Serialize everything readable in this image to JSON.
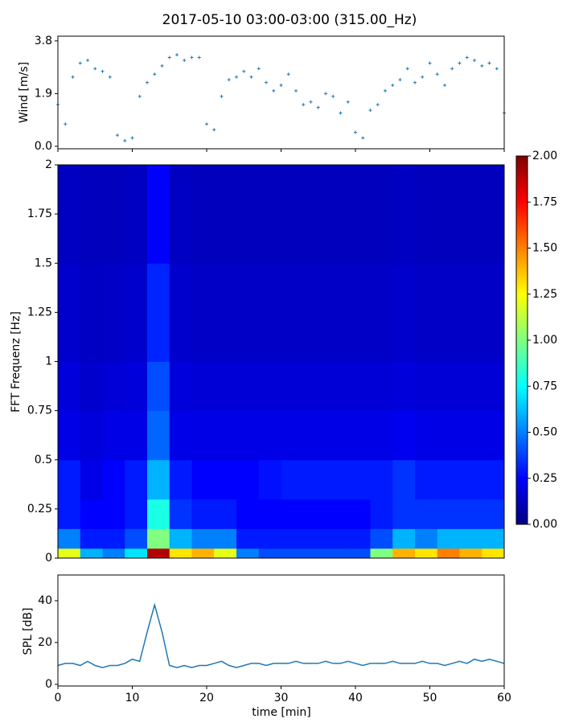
{
  "chart_data": [
    {
      "type": "scatter",
      "title": "2017-05-10 03:00-03:00 (315.00_Hz)",
      "ylabel": "Wind [m/s]",
      "color": "#1f77b4",
      "x": [
        0,
        1,
        2,
        3,
        4,
        5,
        6,
        7,
        8,
        9,
        10,
        11,
        12,
        13,
        14,
        15,
        16,
        17,
        18,
        19,
        20,
        21,
        22,
        23,
        24,
        25,
        26,
        27,
        28,
        29,
        30,
        31,
        32,
        33,
        34,
        35,
        36,
        37,
        38,
        39,
        40,
        41,
        42,
        43,
        44,
        45,
        46,
        47,
        48,
        49,
        50,
        51,
        52,
        53,
        54,
        55,
        56,
        57,
        58,
        59,
        60
      ],
      "values": [
        1.5,
        0.8,
        2.5,
        3.0,
        3.1,
        2.8,
        2.7,
        2.5,
        0.4,
        0.2,
        0.3,
        1.8,
        2.3,
        2.6,
        2.9,
        3.2,
        3.3,
        3.1,
        3.2,
        3.2,
        0.8,
        0.6,
        1.8,
        2.4,
        2.5,
        2.7,
        2.5,
        2.8,
        2.3,
        2.0,
        2.2,
        2.6,
        2.0,
        1.5,
        1.6,
        1.4,
        1.9,
        1.8,
        1.2,
        1.6,
        0.5,
        0.3,
        1.3,
        1.5,
        2.0,
        2.2,
        2.4,
        2.8,
        2.3,
        2.5,
        3.0,
        2.6,
        2.2,
        2.8,
        3.0,
        3.2,
        3.1,
        2.9,
        3.0,
        2.8,
        1.2
      ],
      "xlim": [
        0,
        60
      ],
      "ylim": [
        -0.09,
        3.97
      ],
      "yticks": [
        {
          "value": 0,
          "label": "0.0"
        },
        {
          "value": 1.9,
          "label": "1.9"
        },
        {
          "value": 3.8,
          "label": "3.8"
        }
      ]
    },
    {
      "type": "heatmap",
      "ylabel": "FFT Frequenz [Hz]",
      "colormap": "jet",
      "x_edges": [
        0,
        3,
        6,
        9,
        12,
        15,
        18,
        21,
        24,
        27,
        30,
        33,
        36,
        39,
        42,
        45,
        48,
        51,
        54,
        57,
        60
      ],
      "y_edges": [
        0,
        0.05,
        0.15,
        0.3,
        0.5,
        0.75,
        1,
        1.5,
        2
      ],
      "z": [
        [
          1.2,
          0.6,
          0.5,
          0.7,
          1.9,
          1.3,
          1.4,
          1.2,
          0.5,
          0.4,
          0.4,
          0.4,
          0.4,
          0.4,
          1.0,
          1.4,
          1.3,
          1.5,
          1.4,
          1.3
        ],
        [
          0.5,
          0.3,
          0.3,
          0.4,
          1.0,
          0.6,
          0.5,
          0.5,
          0.3,
          0.3,
          0.3,
          0.3,
          0.3,
          0.3,
          0.4,
          0.6,
          0.5,
          0.6,
          0.6,
          0.6
        ],
        [
          0.3,
          0.25,
          0.25,
          0.3,
          0.8,
          0.35,
          0.3,
          0.3,
          0.25,
          0.25,
          0.25,
          0.25,
          0.25,
          0.25,
          0.3,
          0.35,
          0.35,
          0.35,
          0.35,
          0.35
        ],
        [
          0.3,
          0.2,
          0.25,
          0.3,
          0.6,
          0.3,
          0.25,
          0.25,
          0.25,
          0.28,
          0.3,
          0.3,
          0.3,
          0.3,
          0.3,
          0.35,
          0.3,
          0.3,
          0.3,
          0.3
        ],
        [
          0.2,
          0.18,
          0.2,
          0.2,
          0.45,
          0.2,
          0.2,
          0.2,
          0.2,
          0.2,
          0.2,
          0.2,
          0.2,
          0.2,
          0.2,
          0.22,
          0.2,
          0.2,
          0.2,
          0.2
        ],
        [
          0.18,
          0.15,
          0.17,
          0.18,
          0.4,
          0.18,
          0.17,
          0.17,
          0.17,
          0.17,
          0.17,
          0.17,
          0.17,
          0.17,
          0.17,
          0.18,
          0.17,
          0.17,
          0.17,
          0.17
        ],
        [
          0.15,
          0.13,
          0.14,
          0.15,
          0.32,
          0.15,
          0.14,
          0.14,
          0.14,
          0.14,
          0.14,
          0.14,
          0.14,
          0.14,
          0.14,
          0.15,
          0.14,
          0.14,
          0.14,
          0.14
        ],
        [
          0.13,
          0.12,
          0.12,
          0.13,
          0.25,
          0.13,
          0.12,
          0.12,
          0.12,
          0.12,
          0.12,
          0.12,
          0.12,
          0.12,
          0.12,
          0.13,
          0.12,
          0.12,
          0.12,
          0.12
        ]
      ],
      "xlim": [
        0,
        60
      ],
      "ylim": [
        0,
        2
      ],
      "yticks": [
        0,
        0.25,
        0.5,
        0.75,
        1,
        1.25,
        1.5,
        1.75,
        2
      ],
      "zlim": [
        0,
        2
      ],
      "zticks": [
        {
          "value": 0,
          "label": "0.00"
        },
        {
          "value": 0.25,
          "label": "0.25"
        },
        {
          "value": 0.5,
          "label": "0.50"
        },
        {
          "value": 0.75,
          "label": "0.75"
        },
        {
          "value": 1,
          "label": "1.00"
        },
        {
          "value": 1.25,
          "label": "1.25"
        },
        {
          "value": 1.5,
          "label": "1.50"
        },
        {
          "value": 1.75,
          "label": "1.75"
        },
        {
          "value": 2,
          "label": "2.00"
        }
      ]
    },
    {
      "type": "line",
      "xlabel": "time [min]",
      "ylabel": "SPL [dB]",
      "color": "#1f77b4",
      "x": [
        0,
        1,
        2,
        3,
        4,
        5,
        6,
        7,
        8,
        9,
        10,
        11,
        12,
        13,
        14,
        15,
        16,
        17,
        18,
        19,
        20,
        21,
        22,
        23,
        24,
        25,
        26,
        27,
        28,
        29,
        30,
        31,
        32,
        33,
        34,
        35,
        36,
        37,
        38,
        39,
        40,
        41,
        42,
        43,
        44,
        45,
        46,
        47,
        48,
        49,
        50,
        51,
        52,
        53,
        54,
        55,
        56,
        57,
        58,
        59,
        60
      ],
      "values": [
        9,
        10,
        10,
        9,
        11,
        9,
        8,
        9,
        9,
        10,
        12,
        11,
        25,
        38,
        25,
        9,
        8,
        9,
        8,
        9,
        9,
        10,
        11,
        9,
        8,
        9,
        10,
        10,
        9,
        10,
        10,
        10,
        11,
        10,
        10,
        10,
        11,
        10,
        10,
        11,
        10,
        9,
        10,
        10,
        10,
        11,
        10,
        10,
        10,
        11,
        10,
        10,
        9,
        10,
        11,
        10,
        12,
        11,
        12,
        11,
        10
      ],
      "xlim": [
        0,
        60
      ],
      "ylim": [
        -0.8,
        52.3
      ],
      "xticks": [
        0,
        10,
        20,
        30,
        40,
        50,
        60
      ],
      "yticks": [
        0,
        20,
        40
      ]
    }
  ]
}
